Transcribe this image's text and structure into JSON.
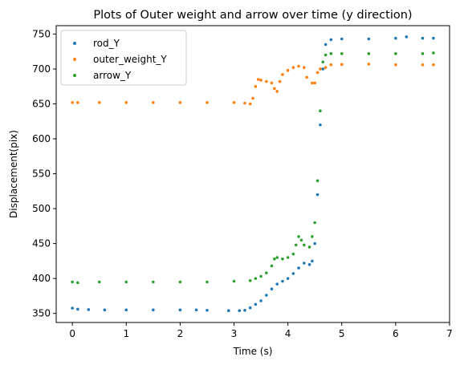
{
  "chart_data": {
    "type": "scatter",
    "title": "Plots of Outer weight and arrow over time (y direction)",
    "xlabel": "Time (s)",
    "ylabel": "Displacement(pix)",
    "xlim": [
      -0.3,
      7.0
    ],
    "ylim": [
      337,
      762
    ],
    "xticks": [
      0,
      1,
      2,
      3,
      4,
      5,
      6,
      7
    ],
    "yticks": [
      350,
      400,
      450,
      500,
      550,
      600,
      650,
      700,
      750
    ],
    "grid": false,
    "legend_position": "top-left",
    "series": [
      {
        "name": "rod_Y",
        "color": "#1f77b4",
        "points": [
          [
            0.0,
            357.5
          ],
          [
            0.1,
            356.0
          ],
          [
            0.3,
            355.5
          ],
          [
            0.6,
            355.0
          ],
          [
            1.0,
            355.0
          ],
          [
            1.5,
            355.0
          ],
          [
            2.0,
            355.0
          ],
          [
            2.3,
            355.0
          ],
          [
            2.5,
            354.5
          ],
          [
            2.9,
            354.0
          ],
          [
            3.1,
            354.0
          ],
          [
            3.2,
            354.5
          ],
          [
            3.3,
            358.0
          ],
          [
            3.4,
            363.0
          ],
          [
            3.5,
            368.0
          ],
          [
            3.6,
            376.0
          ],
          [
            3.7,
            385.0
          ],
          [
            3.8,
            392.0
          ],
          [
            3.9,
            396.0
          ],
          [
            4.0,
            400.0
          ],
          [
            4.1,
            407.0
          ],
          [
            4.2,
            415.0
          ],
          [
            4.3,
            422.0
          ],
          [
            4.4,
            420.0
          ],
          [
            4.45,
            425.0
          ],
          [
            4.5,
            450.0
          ],
          [
            4.55,
            520.0
          ],
          [
            4.6,
            620.0
          ],
          [
            4.65,
            700.0
          ],
          [
            4.7,
            735.0
          ],
          [
            4.8,
            742.0
          ],
          [
            5.0,
            743.0
          ],
          [
            5.5,
            743.0
          ],
          [
            6.0,
            744.0
          ],
          [
            6.2,
            746.0
          ],
          [
            6.5,
            744.0
          ],
          [
            6.7,
            744.0
          ]
        ]
      },
      {
        "name": "outer_weight_Y",
        "color": "#ff7f0e",
        "points": [
          [
            0.0,
            652.0
          ],
          [
            0.1,
            652.0
          ],
          [
            0.5,
            652.0
          ],
          [
            1.0,
            652.0
          ],
          [
            1.5,
            652.0
          ],
          [
            2.0,
            652.0
          ],
          [
            2.5,
            652.0
          ],
          [
            3.0,
            652.0
          ],
          [
            3.2,
            651.0
          ],
          [
            3.3,
            650.0
          ],
          [
            3.35,
            658.0
          ],
          [
            3.4,
            675.0
          ],
          [
            3.45,
            685.0
          ],
          [
            3.5,
            684.0
          ],
          [
            3.6,
            682.0
          ],
          [
            3.7,
            680.0
          ],
          [
            3.75,
            672.0
          ],
          [
            3.8,
            668.0
          ],
          [
            3.85,
            682.0
          ],
          [
            3.9,
            692.0
          ],
          [
            4.0,
            698.0
          ],
          [
            4.1,
            702.0
          ],
          [
            4.2,
            704.0
          ],
          [
            4.3,
            702.0
          ],
          [
            4.35,
            688.0
          ],
          [
            4.45,
            680.0
          ],
          [
            4.5,
            680.0
          ],
          [
            4.55,
            695.0
          ],
          [
            4.6,
            700.0
          ],
          [
            4.7,
            702.0
          ],
          [
            4.8,
            706.0
          ],
          [
            5.0,
            706.5
          ],
          [
            5.5,
            707.0
          ],
          [
            6.0,
            706.0
          ],
          [
            6.5,
            706.0
          ],
          [
            6.7,
            706.0
          ]
        ]
      },
      {
        "name": "arrow_Y",
        "color": "#2ca02c",
        "points": [
          [
            0.0,
            395.0
          ],
          [
            0.1,
            394.0
          ],
          [
            0.5,
            395.0
          ],
          [
            1.0,
            395.0
          ],
          [
            1.5,
            395.0
          ],
          [
            2.0,
            395.0
          ],
          [
            2.5,
            395.0
          ],
          [
            3.0,
            396.0
          ],
          [
            3.3,
            397.0
          ],
          [
            3.4,
            400.0
          ],
          [
            3.5,
            403.0
          ],
          [
            3.6,
            408.0
          ],
          [
            3.7,
            418.0
          ],
          [
            3.75,
            428.0
          ],
          [
            3.8,
            430.0
          ],
          [
            3.9,
            428.0
          ],
          [
            4.0,
            430.0
          ],
          [
            4.1,
            435.0
          ],
          [
            4.15,
            448.0
          ],
          [
            4.2,
            460.0
          ],
          [
            4.25,
            455.0
          ],
          [
            4.3,
            448.0
          ],
          [
            4.4,
            445.0
          ],
          [
            4.45,
            460.0
          ],
          [
            4.5,
            480.0
          ],
          [
            4.55,
            540.0
          ],
          [
            4.6,
            640.0
          ],
          [
            4.65,
            710.0
          ],
          [
            4.7,
            720.0
          ],
          [
            4.8,
            722.0
          ],
          [
            5.0,
            722.0
          ],
          [
            5.5,
            722.0
          ],
          [
            6.0,
            722.0
          ],
          [
            6.5,
            722.0
          ],
          [
            6.7,
            723.0
          ]
        ]
      }
    ]
  }
}
